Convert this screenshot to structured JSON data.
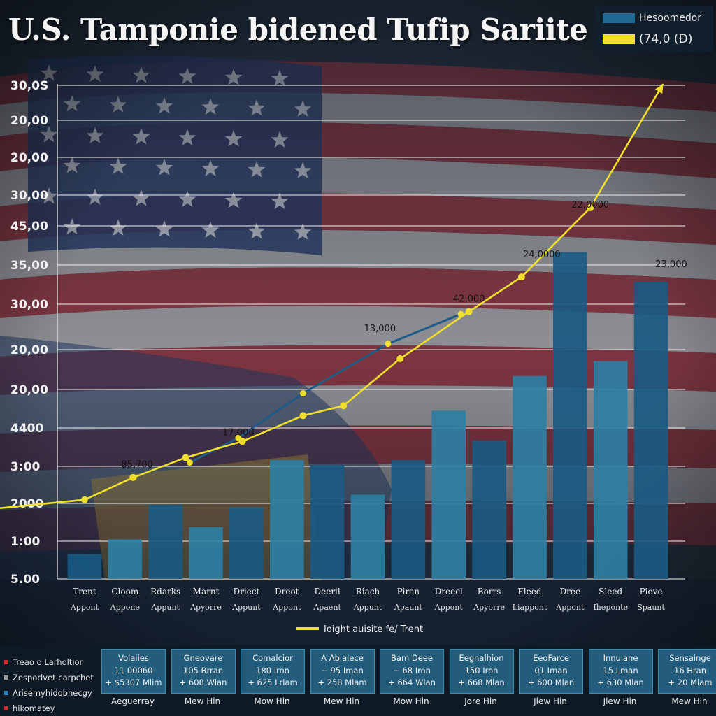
{
  "colors": {
    "bar_dark": "#1a5a82",
    "bar_light": "#2e7fa3",
    "trend_yellow": "#f0e02c",
    "line_blue": "#1e5b86"
  },
  "legend": {
    "items": [
      {
        "label": "Hesoomedor",
        "color": "#1e6a92"
      },
      {
        "label": "(74,0 (Ð)",
        "color": "#f0e02c"
      }
    ]
  },
  "chart_data": {
    "type": "bar",
    "title": "U.S. Tamponie bidened Tufip Sariite",
    "y_tick_labels": [
      "30,0S",
      "20,00",
      "20,00",
      "30,00",
      "45,00",
      "35,00",
      "30,00",
      "20,00",
      "20,00",
      "4400",
      "3:00",
      "2000",
      "1:00",
      "5.00"
    ],
    "categories": [
      {
        "name": "Trent",
        "sub": "Appont"
      },
      {
        "name": "Cloom",
        "sub": "Appone"
      },
      {
        "name": "Rdarks",
        "sub": "Appunt"
      },
      {
        "name": "Marnt",
        "sub": "Apyorre"
      },
      {
        "name": "Driect",
        "sub": "Appunt"
      },
      {
        "name": "Dreot",
        "sub": "Appont"
      },
      {
        "name": "Deeril",
        "sub": "Apaent"
      },
      {
        "name": "Riach",
        "sub": "Appunt"
      },
      {
        "name": "Piran",
        "sub": "Apaunt"
      },
      {
        "name": "Dreecl",
        "sub": "Appont"
      },
      {
        "name": "Borrs",
        "sub": "Apyorre"
      },
      {
        "name": "Fleed",
        "sub": "Liappont"
      },
      {
        "name": "Dree",
        "sub": "Appont"
      },
      {
        "name": "Sleed",
        "sub": "Iheponte"
      },
      {
        "name": "Pieve",
        "sub": "Spaunt"
      }
    ],
    "bar_scale_max": 100,
    "values": [
      5,
      8,
      15,
      10.5,
      14.5,
      24,
      23,
      17,
      24,
      34,
      28,
      41,
      66,
      44,
      60
    ],
    "data_labels": [
      {
        "text": "13,000",
        "bar": 7.3,
        "level": 50
      },
      {
        "text": "42,000",
        "bar": 9.5,
        "level": 56
      },
      {
        "text": "24,0000",
        "bar": 11.3,
        "level": 65
      },
      {
        "text": "22,0000",
        "bar": 12.5,
        "level": 75
      },
      {
        "text": "23,000",
        "bar": 14.5,
        "level": 63
      },
      {
        "text": "17,000",
        "bar": 3.8,
        "level": 29
      },
      {
        "text": "85,700",
        "bar": 1.3,
        "level": 22.5
      }
    ],
    "trend_line": {
      "name": "Ioight auisite fe/ Trent",
      "points": [
        {
          "bar": 0,
          "level": 16
        },
        {
          "bar": 1.2,
          "level": 20.5
        },
        {
          "bar": 2.5,
          "level": 24.5
        },
        {
          "bar": 3.9,
          "level": 27.8
        },
        {
          "bar": 5.4,
          "level": 33
        },
        {
          "bar": 6.4,
          "level": 35
        },
        {
          "bar": 7.8,
          "level": 44.5
        },
        {
          "bar": 9.5,
          "level": 54
        },
        {
          "bar": 10.8,
          "level": 61
        },
        {
          "bar": 12.5,
          "level": 75
        },
        {
          "bar": 14.3,
          "level": 100
        }
      ]
    },
    "blue_line": {
      "points": [
        {
          "bar": 2.6,
          "level": 23.5
        },
        {
          "bar": 3.8,
          "level": 28.5
        },
        {
          "bar": 5.4,
          "level": 37.5
        },
        {
          "bar": 7.5,
          "level": 47.5
        },
        {
          "bar": 9.3,
          "level": 53.5
        }
      ]
    }
  },
  "bottom_legend": [
    {
      "label": "Treao o Larholtior",
      "color": "#d02a2a"
    },
    {
      "label": "Zesporlvet carpchet",
      "color": "#9a9a9a"
    },
    {
      "label": "Arisemyhidobnecgy",
      "color": "#2a86c0"
    },
    {
      "label": "hikomatey",
      "color": "#d02a2a"
    }
  ],
  "cards": [
    {
      "title": "Volaiies",
      "line1": "11 00060",
      "line2": "+ $5307 Mlim",
      "footer": "Aeguerray"
    },
    {
      "title": "Gneovare",
      "line1": "105 Brran",
      "line2": "+ 608 Wlan",
      "footer": "Mew Hin"
    },
    {
      "title": "Comalcior",
      "line1": "180 Iron",
      "line2": "+ 625 Lrlam",
      "footer": "Mow Hin"
    },
    {
      "title": "A Abialece",
      "line1": "~ 95 Iman",
      "line2": "+ 258 Mlam",
      "footer": "Mew Hin"
    },
    {
      "title": "Bam Deee",
      "line1": "~ 68 Iron",
      "line2": "+ 664 Wlan",
      "footer": "Mow Hin"
    },
    {
      "title": "Eegnalhion",
      "line1": "150 Iron",
      "line2": "+ 668 Mlan",
      "footer": "Jore Hin"
    },
    {
      "title": "EeoFarce",
      "line1": "01 Iman",
      "line2": "+ 600 Mlan",
      "footer": "Jlew Hin"
    },
    {
      "title": "Innulane",
      "line1": "15 Lman",
      "line2": "+ 630 Mlan",
      "footer": "Jlew Hin"
    },
    {
      "title": "Sensainge",
      "line1": "16 Hran",
      "line2": "+ 20 Mlam",
      "footer": "Mew Hin"
    }
  ]
}
